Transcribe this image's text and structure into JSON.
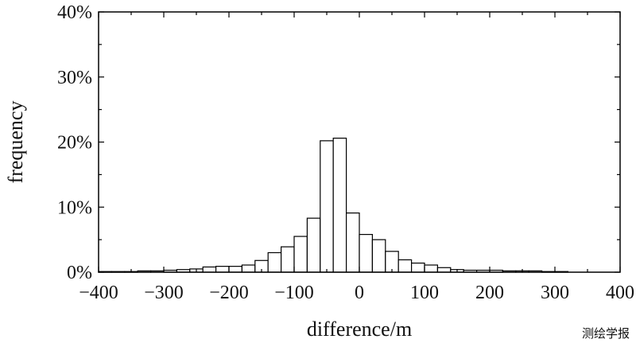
{
  "chart_data": {
    "type": "bar",
    "xlabel": "difference/m",
    "ylabel": "frequency",
    "xlim": [
      -400,
      400
    ],
    "ylim": [
      0,
      40
    ],
    "bin_width": 20,
    "x_ticks": [
      -400,
      -300,
      -200,
      -100,
      0,
      100,
      200,
      300,
      400
    ],
    "x_tick_labels": [
      "−400",
      "−300",
      "−200",
      "−100",
      "0",
      "100",
      "200",
      "300",
      "400"
    ],
    "y_ticks": [
      0,
      10,
      20,
      30,
      40
    ],
    "y_tick_labels": [
      "0%",
      "10%",
      "20%",
      "30%",
      "40%"
    ],
    "grid": false,
    "bins": [
      {
        "x0": -400,
        "x1": -380,
        "value": 0.1
      },
      {
        "x0": -380,
        "x1": -360,
        "value": 0.1
      },
      {
        "x0": -360,
        "x1": -340,
        "value": 0.1
      },
      {
        "x0": -340,
        "x1": -320,
        "value": 0.2
      },
      {
        "x0": -320,
        "x1": -300,
        "value": 0.2
      },
      {
        "x0": -300,
        "x1": -280,
        "value": 0.3
      },
      {
        "x0": -280,
        "x1": -260,
        "value": 0.4
      },
      {
        "x0": -260,
        "x1": -240,
        "value": 0.5
      },
      {
        "x0": -240,
        "x1": -220,
        "value": 0.8
      },
      {
        "x0": -220,
        "x1": -200,
        "value": 0.9
      },
      {
        "x0": -200,
        "x1": -180,
        "value": 0.9
      },
      {
        "x0": -180,
        "x1": -160,
        "value": 1.1
      },
      {
        "x0": -160,
        "x1": -140,
        "value": 1.8
      },
      {
        "x0": -140,
        "x1": -120,
        "value": 3.0
      },
      {
        "x0": -120,
        "x1": -100,
        "value": 3.9
      },
      {
        "x0": -100,
        "x1": -80,
        "value": 5.5
      },
      {
        "x0": -80,
        "x1": -60,
        "value": 8.3
      },
      {
        "x0": -60,
        "x1": -40,
        "value": 20.2
      },
      {
        "x0": -40,
        "x1": -20,
        "value": 20.6
      },
      {
        "x0": -20,
        "x1": 0,
        "value": 9.1
      },
      {
        "x0": 0,
        "x1": 20,
        "value": 5.8
      },
      {
        "x0": 20,
        "x1": 40,
        "value": 5.0
      },
      {
        "x0": 40,
        "x1": 60,
        "value": 3.2
      },
      {
        "x0": 60,
        "x1": 80,
        "value": 1.9
      },
      {
        "x0": 80,
        "x1": 100,
        "value": 1.4
      },
      {
        "x0": 100,
        "x1": 120,
        "value": 1.1
      },
      {
        "x0": 120,
        "x1": 140,
        "value": 0.7
      },
      {
        "x0": 140,
        "x1": 160,
        "value": 0.4
      },
      {
        "x0": 160,
        "x1": 180,
        "value": 0.3
      },
      {
        "x0": 180,
        "x1": 200,
        "value": 0.3
      },
      {
        "x0": 200,
        "x1": 220,
        "value": 0.3
      },
      {
        "x0": 220,
        "x1": 240,
        "value": 0.2
      },
      {
        "x0": 240,
        "x1": 260,
        "value": 0.2
      },
      {
        "x0": 260,
        "x1": 280,
        "value": 0.2
      },
      {
        "x0": 280,
        "x1": 300,
        "value": 0.1
      },
      {
        "x0": 300,
        "x1": 320,
        "value": 0.1
      }
    ]
  },
  "watermark": "测绘学报"
}
